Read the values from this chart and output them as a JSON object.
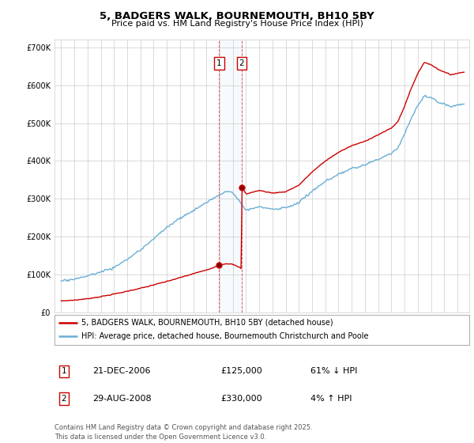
{
  "title": "5, BADGERS WALK, BOURNEMOUTH, BH10 5BY",
  "subtitle": "Price paid vs. HM Land Registry's House Price Index (HPI)",
  "background_color": "#ffffff",
  "grid_color": "#cccccc",
  "hpi_color": "#6baed6",
  "price_color": "#cc0000",
  "sale1_date_label": "21-DEC-2006",
  "sale1_price": 125000,
  "sale1_price_label": "£125,000",
  "sale1_hpi_label": "61% ↓ HPI",
  "sale2_date_label": "29-AUG-2008",
  "sale2_price": 330000,
  "sale2_price_label": "£330,000",
  "sale2_hpi_label": "4% ↑ HPI",
  "legend_line1": "5, BADGERS WALK, BOURNEMOUTH, BH10 5BY (detached house)",
  "legend_line2": "HPI: Average price, detached house, Bournemouth Christchurch and Poole",
  "footer": "Contains HM Land Registry data © Crown copyright and database right 2025.\nThis data is licensed under the Open Government Licence v3.0.",
  "ylim": [
    0,
    720000
  ],
  "yticks": [
    0,
    100000,
    200000,
    300000,
    400000,
    500000,
    600000,
    700000
  ],
  "sale1_x": 2006.97,
  "sale2_x": 2008.66
}
